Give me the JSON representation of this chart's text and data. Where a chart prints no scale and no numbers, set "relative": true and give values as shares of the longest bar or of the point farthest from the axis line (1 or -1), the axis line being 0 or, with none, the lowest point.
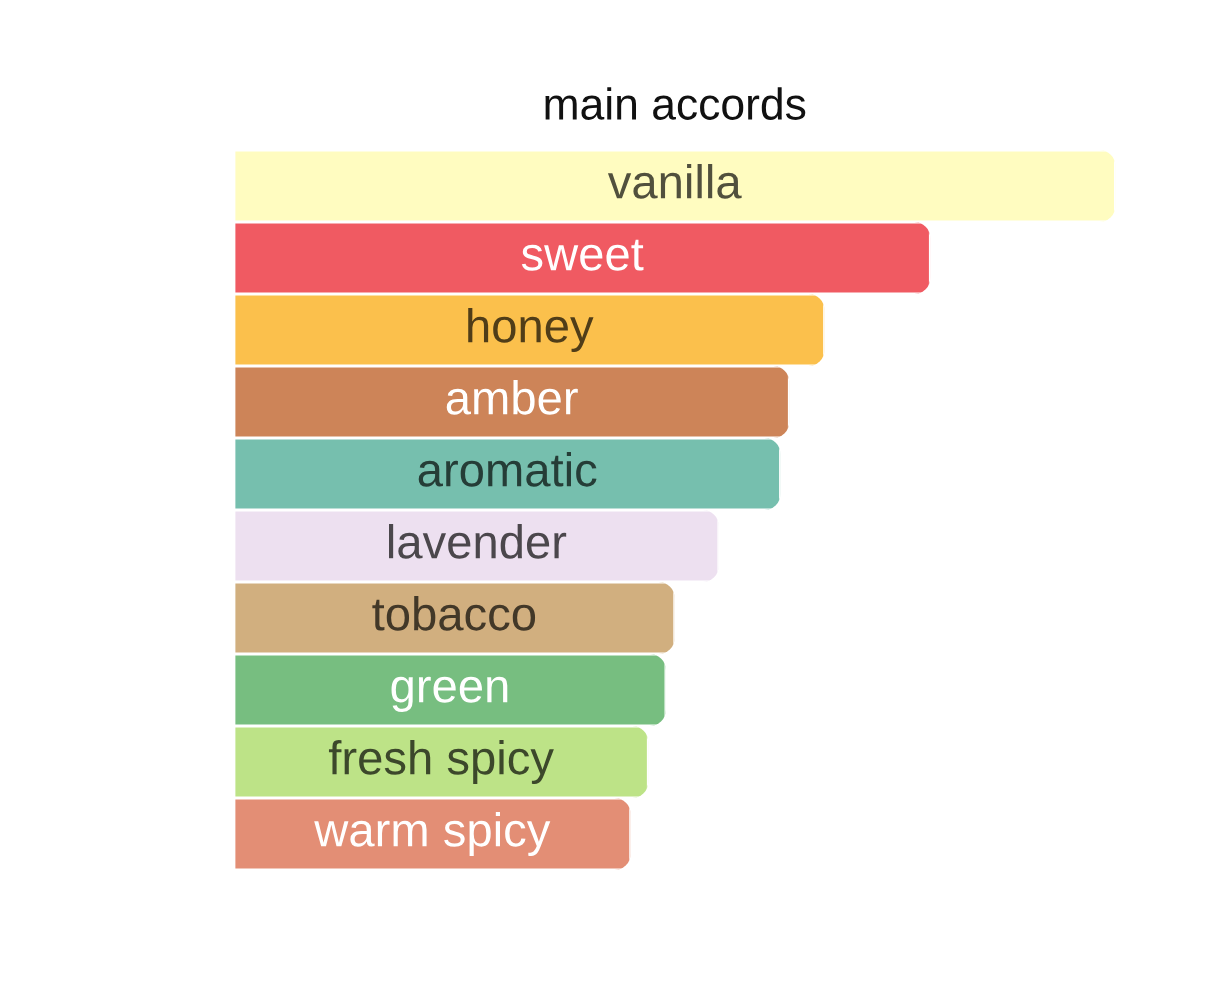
{
  "chart_data": {
    "type": "bar",
    "orientation": "horizontal",
    "relative": true,
    "title": "main accords",
    "categories": [
      "vanilla",
      "sweet",
      "honey",
      "amber",
      "aromatic",
      "lavender",
      "tobacco",
      "green",
      "fresh spicy",
      "warm spicy"
    ],
    "values": [
      1,
      0.79,
      0.67,
      0.63,
      0.62,
      0.55,
      0.5,
      0.49,
      0.47,
      0.45
    ],
    "colors": [
      "#fffcc0",
      "#f05a62",
      "#fbc04c",
      "#cd8458",
      "#76bfae",
      "#ede0f0",
      "#d1af7f",
      "#77be80",
      "#bde387",
      "#e38e75"
    ]
  }
}
